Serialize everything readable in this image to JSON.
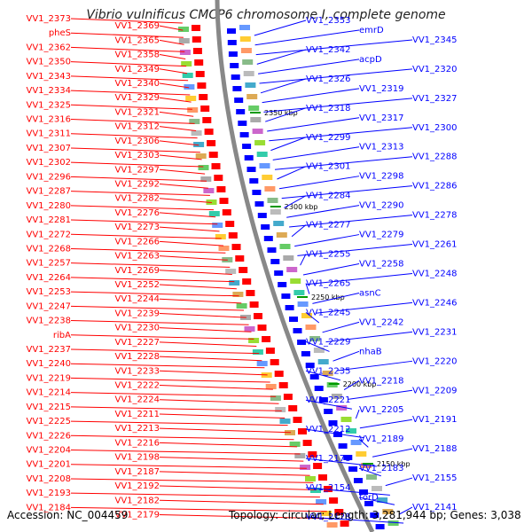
{
  "title": "Vibrio vulnificus CMCP6 chromosome I, complete genome",
  "footer": {
    "accession": "Accession: NC_004459",
    "info": "Topology: circular; Length: 3,281,944 bp; Genes: 3,038"
  },
  "scale_labels": [
    "2350 kbp",
    "2300 kbp",
    "2250 kbp",
    "2200 kbp",
    "2150 kbp"
  ],
  "colors": {
    "left_strand": "#ff0000",
    "right_strand": "#0000ff",
    "backbone": "#888888",
    "tick": "#009900"
  },
  "left_labels": [
    "VV1_2373",
    "VV1_2369",
    "pheS",
    "VV1_2365",
    "VV1_2362",
    "VV1_2358",
    "VV1_2350",
    "VV1_2349",
    "VV1_2343",
    "VV1_2340",
    "VV1_2334",
    "VV1_2329",
    "VV1_2325",
    "VV1_2321",
    "VV1_2316",
    "VV1_2312",
    "VV1_2311",
    "VV1_2306",
    "VV1_2307",
    "VV1_2303",
    "VV1_2302",
    "VV1_2297",
    "VV1_2296",
    "VV1_2292",
    "VV1_2287",
    "VV1_2282",
    "VV1_2280",
    "VV1_2276",
    "VV1_2281",
    "VV1_2273",
    "VV1_2272",
    "VV1_2266",
    "VV1_2268",
    "VV1_2263",
    "VV1_2257",
    "VV1_2269",
    "VV1_2264",
    "VV1_2252",
    "VV1_2253",
    "VV1_2244",
    "VV1_2247",
    "VV1_2239",
    "VV1_2238",
    "VV1_2230",
    "ribA",
    "VV1_2227",
    "VV1_2237",
    "VV1_2228",
    "VV1_2240",
    "VV1_2233",
    "VV1_2219",
    "VV1_2222",
    "VV1_2214",
    "VV1_2224",
    "VV1_2215",
    "VV1_2211",
    "VV1_2225",
    "VV1_2213",
    "VV1_2226",
    "VV1_2216",
    "VV1_2204",
    "VV1_2198",
    "VV1_2201",
    "VV1_2187",
    "VV1_2208",
    "VV1_2192",
    "VV1_2193",
    "VV1_2182",
    "VV1_2184",
    "VV1_2179"
  ],
  "right_labels": [
    "VV1_2353",
    "emrD",
    "VV1_2345",
    "VV1_2342",
    "acpD",
    "VV1_2320",
    "VV1_2326",
    "VV1_2319",
    "VV1_2327",
    "VV1_2318",
    "VV1_2317",
    "VV1_2300",
    "VV1_2299",
    "VV1_2313",
    "VV1_2288",
    "VV1_2301",
    "VV1_2298",
    "VV1_2286",
    "VV1_2284",
    "VV1_2290",
    "VV1_2278",
    "VV1_2277",
    "VV1_2279",
    "VV1_2261",
    "VV1_2255",
    "VV1_2258",
    "VV1_2248",
    "VV1_2265",
    "asnC",
    "VV1_2246",
    "VV1_2245",
    "VV1_2242",
    "VV1_2231",
    "VV1_2229",
    "nhaB",
    "VV1_2220",
    "VV1_2235",
    "VV1_2218",
    "VV1_2209",
    "VV1_2221",
    "VV1_2205",
    "VV1_2191",
    "VV1_2212",
    "VV1_2189",
    "VV1_2188",
    "VV1_2178",
    "VV1_2183",
    "VV1_2155",
    "VV1_2154",
    "torD",
    "VV1_2141",
    "VV1_2128"
  ]
}
